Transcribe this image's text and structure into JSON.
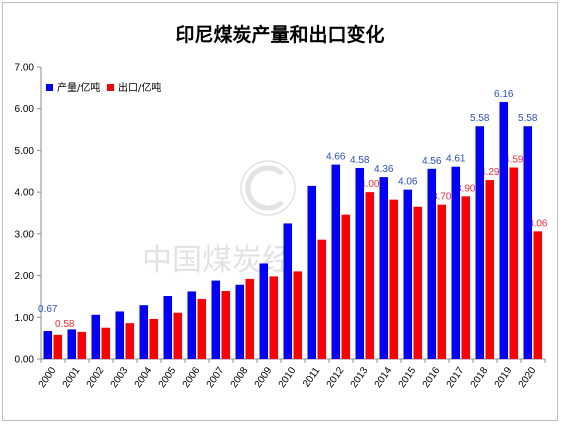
{
  "colors": {
    "background": "#FFFFFF",
    "border": "#BFBFBF",
    "axis": "#8C8C8C",
    "text": "#000000",
    "watermark": "#D9D9D9"
  },
  "watermark": {
    "text": "中国煤炭经"
  },
  "chart_data": {
    "type": "bar",
    "title": "印尼煤炭产量和出口变化",
    "xlabel": "",
    "ylabel": "",
    "categories": [
      "2000",
      "2001",
      "2002",
      "2003",
      "2004",
      "2005",
      "2006",
      "2007",
      "2008",
      "2009",
      "2010",
      "2011",
      "2012",
      "2013",
      "2014",
      "2015",
      "2016",
      "2017",
      "2018",
      "2019",
      "2020"
    ],
    "ylim": [
      0,
      7
    ],
    "yticks": [
      "0.00",
      "1.00",
      "2.00",
      "3.00",
      "4.00",
      "5.00",
      "6.00",
      "7.00"
    ],
    "grid": false,
    "legend_position": "top-left",
    "series": [
      {
        "name": "产量/亿吨",
        "color": "#0000FF",
        "label_color": "#2B50C8",
        "values": [
          0.67,
          0.71,
          1.06,
          1.14,
          1.29,
          1.51,
          1.62,
          1.88,
          1.78,
          2.29,
          3.25,
          4.15,
          4.66,
          4.58,
          4.36,
          4.06,
          4.56,
          4.61,
          5.58,
          6.16,
          5.58
        ],
        "data_labels": [
          "0.67",
          null,
          null,
          null,
          null,
          null,
          null,
          null,
          null,
          null,
          null,
          null,
          "4.66",
          "4.58",
          "4.36",
          "4.06",
          "4.56",
          "4.61",
          "5.58",
          "6.16",
          "5.58"
        ]
      },
      {
        "name": "出口/亿吨",
        "color": "#FF0000",
        "label_color": "#FF2A2A",
        "values": [
          0.58,
          0.65,
          0.75,
          0.86,
          0.96,
          1.11,
          1.44,
          1.63,
          1.92,
          1.98,
          2.1,
          2.86,
          3.46,
          4.0,
          3.82,
          3.65,
          3.7,
          3.9,
          4.29,
          4.59,
          3.06
        ],
        "data_labels": [
          "0.58",
          null,
          null,
          null,
          null,
          null,
          null,
          null,
          null,
          null,
          null,
          null,
          null,
          "4.00",
          null,
          null,
          "3.70",
          "3.90",
          "4.29",
          "4.59",
          "3.06"
        ]
      }
    ]
  }
}
